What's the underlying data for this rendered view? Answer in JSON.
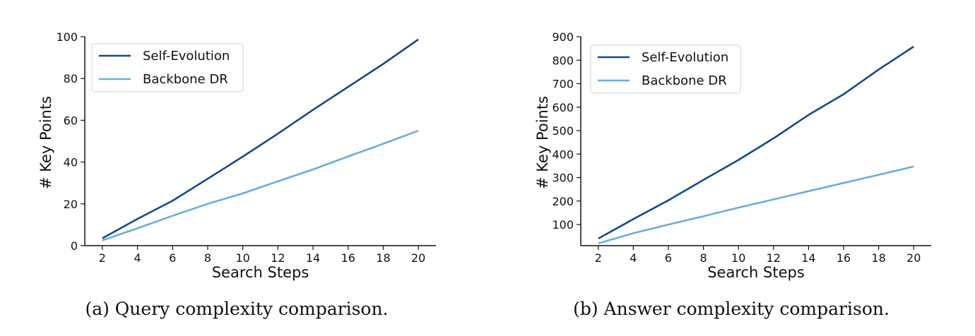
{
  "chart_data": [
    {
      "type": "line",
      "caption": "(a) Query complexity comparison.",
      "xlabel": "Search Steps",
      "ylabel": "# Key Points",
      "x": [
        2,
        4,
        6,
        8,
        10,
        12,
        14,
        16,
        18,
        20
      ],
      "x_ticks": [
        "2",
        "4",
        "6",
        "8",
        "10",
        "12",
        "14",
        "16",
        "18",
        "20"
      ],
      "xlim": [
        1,
        21
      ],
      "ylim": [
        0,
        100
      ],
      "y_ticks": [
        "0",
        "20",
        "40",
        "60",
        "80",
        "100"
      ],
      "grid": false,
      "legend_position": "top-left",
      "series": [
        {
          "name": "Self-Evolution",
          "color": "#0f4c8a",
          "values": [
            3.5,
            12.8,
            21.5,
            32.0,
            42.6,
            53.6,
            65.0,
            76.0,
            87.0,
            98.7
          ]
        },
        {
          "name": "Backbone DR",
          "color": "#6aaed6",
          "values": [
            2.5,
            8.3,
            14.3,
            20.0,
            25.0,
            30.8,
            36.5,
            42.7,
            48.8,
            55.0
          ]
        }
      ]
    },
    {
      "type": "line",
      "caption": "(b) Answer complexity comparison.",
      "xlabel": "Search Steps",
      "ylabel": "# Key Points",
      "x": [
        2,
        4,
        6,
        8,
        10,
        12,
        14,
        16,
        18,
        20
      ],
      "x_ticks": [
        "2",
        "4",
        "6",
        "8",
        "10",
        "12",
        "14",
        "16",
        "18",
        "20"
      ],
      "xlim": [
        1,
        21
      ],
      "ylim": [
        10,
        900
      ],
      "y_ticks": [
        "100",
        "200",
        "300",
        "400",
        "500",
        "600",
        "700",
        "800",
        "900"
      ],
      "grid": false,
      "legend_position": "top-left",
      "series": [
        {
          "name": "Self-Evolution",
          "color": "#0f4c8a",
          "values": [
            40,
            123,
            203,
            290,
            375,
            467,
            567,
            655,
            760,
            858
          ]
        },
        {
          "name": "Backbone DR",
          "color": "#6aaed6",
          "values": [
            20,
            63,
            100,
            135,
            172,
            207,
            242,
            277,
            312,
            347
          ]
        }
      ]
    }
  ]
}
